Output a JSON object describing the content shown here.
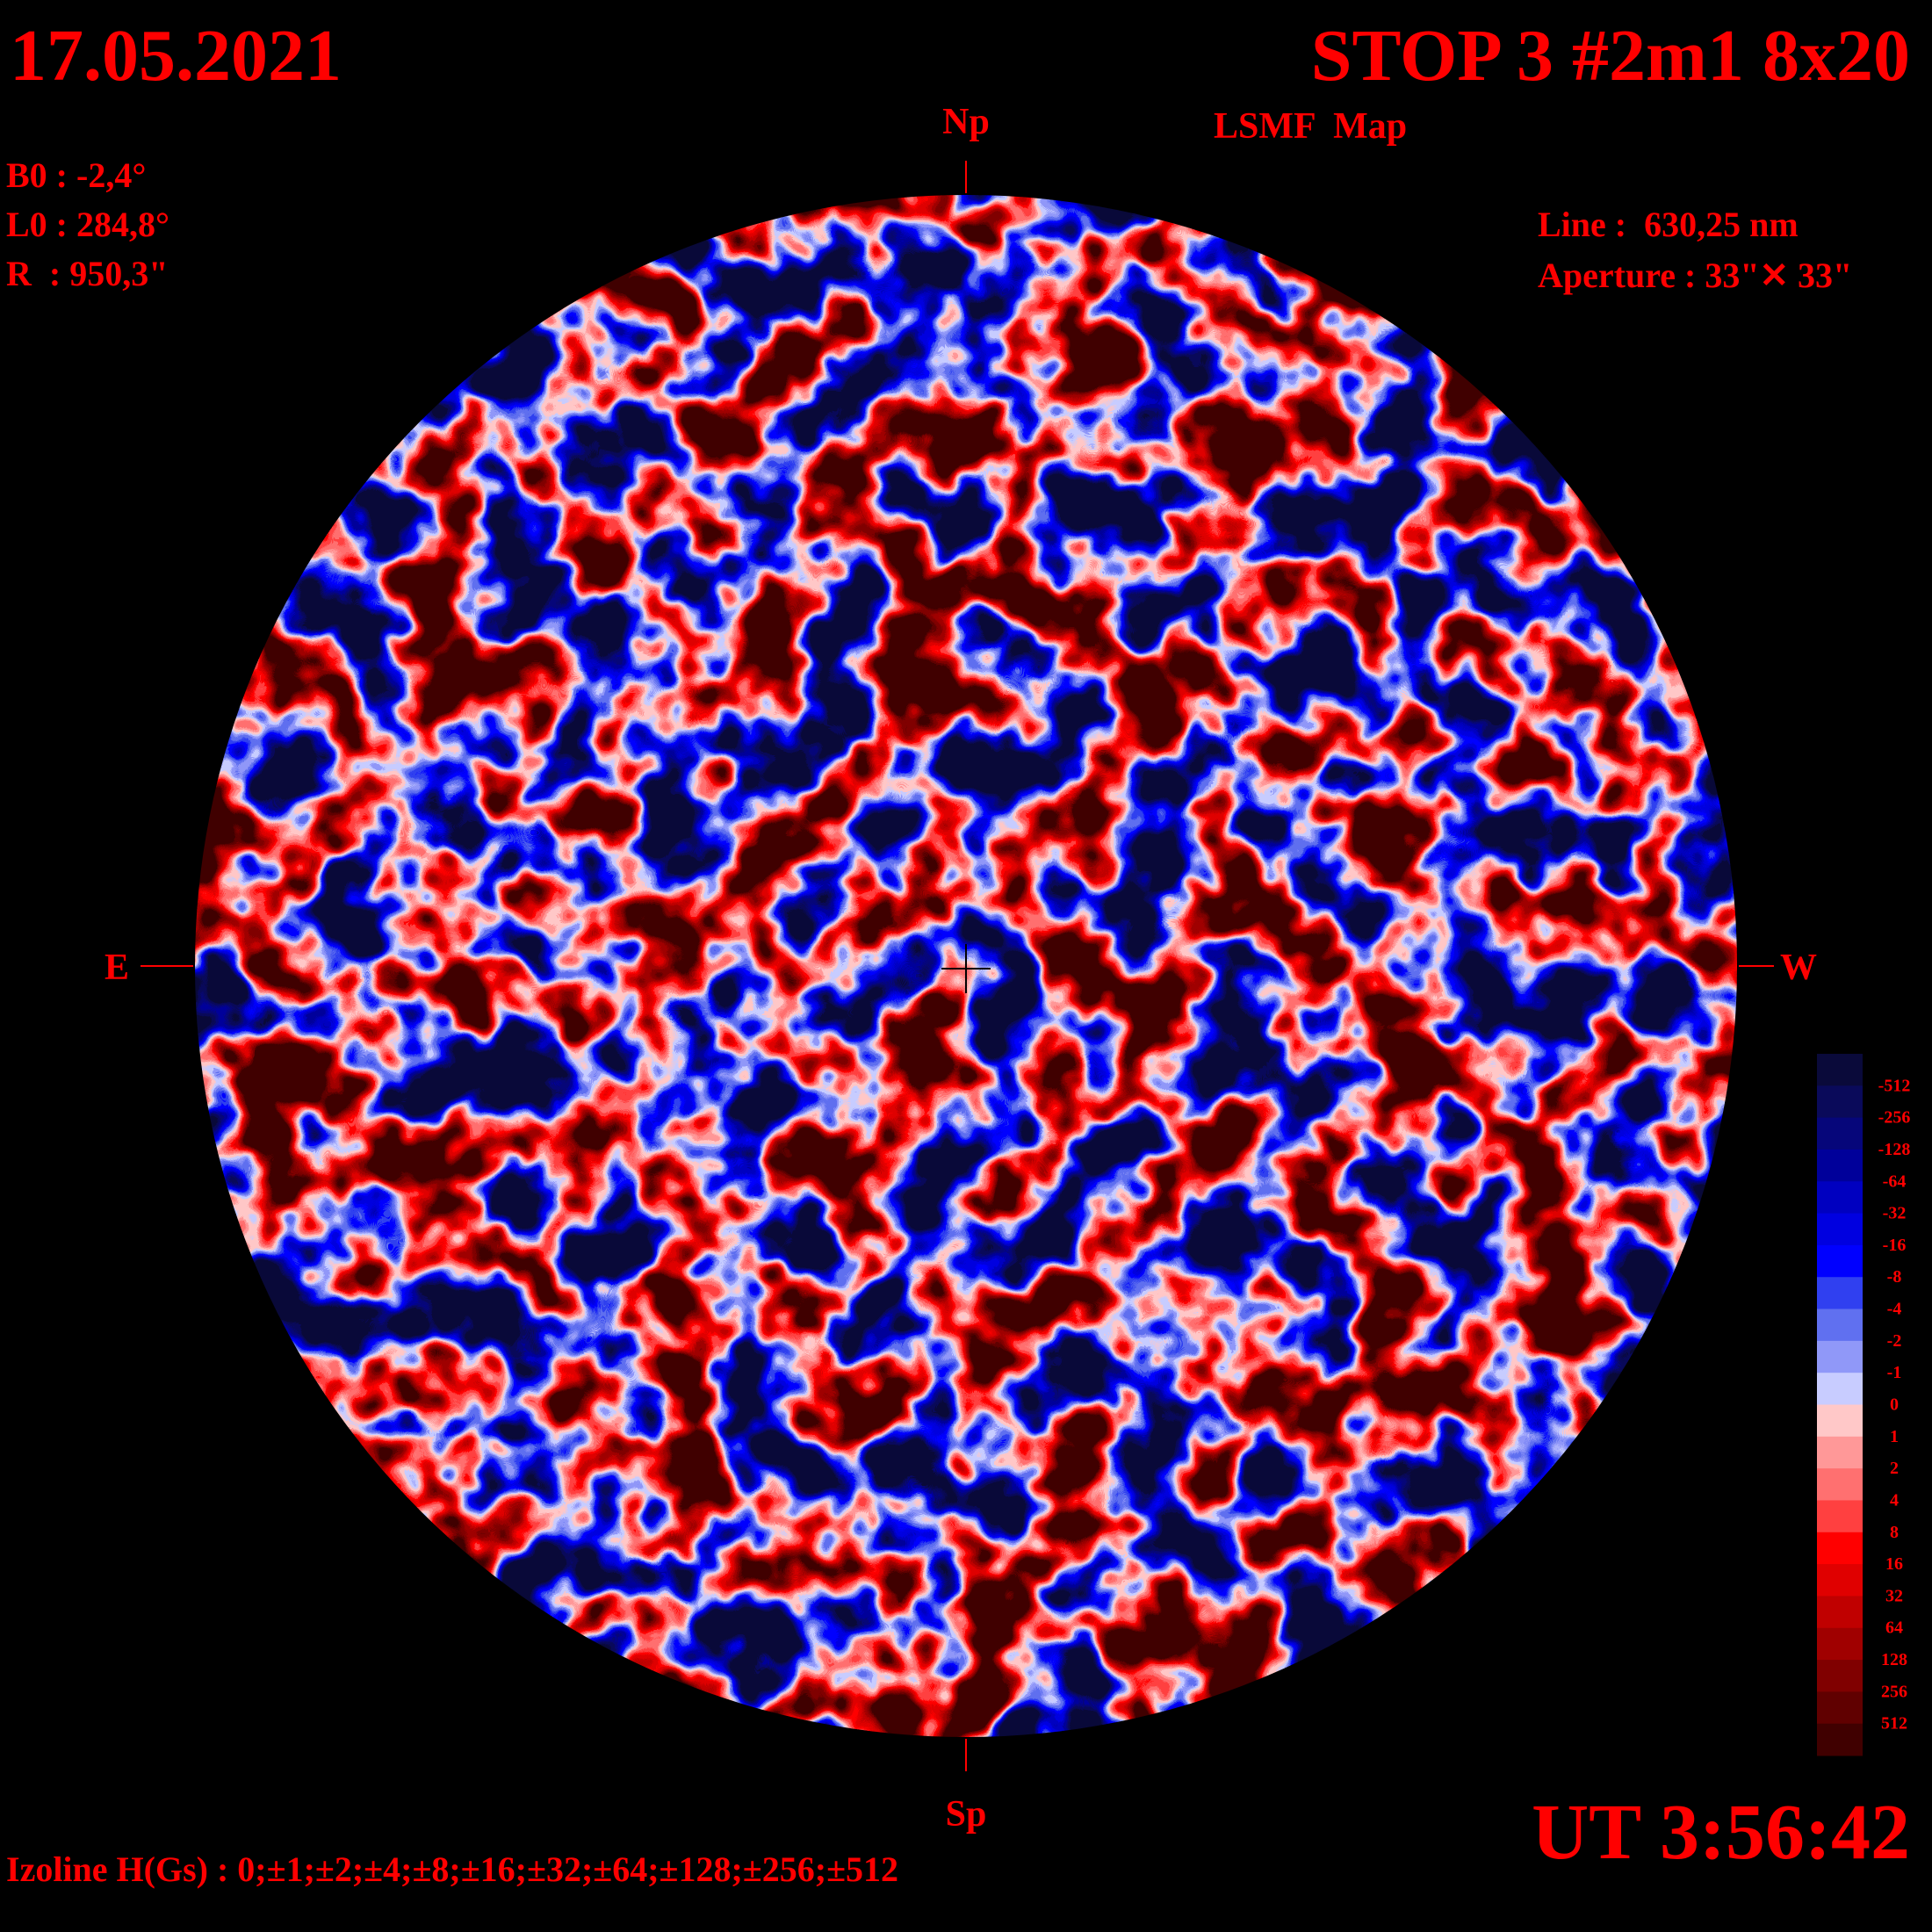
{
  "header": {
    "date": "17.05.2021",
    "title": "STOP 3 #2m1 8x20",
    "subtitle": "LSMF  Map",
    "time": "UT 3:56:42"
  },
  "parameters": [
    "B0 : -2,4°",
    "L0 : 284,8°",
    "R  : 950,3\""
  ],
  "instrument": [
    "Line :  630,25 nm",
    "Aperture : 33\"✕ 33\""
  ],
  "directions": {
    "north": "Np",
    "south": "Sp",
    "east": "E",
    "west": "W"
  },
  "colorbar": {
    "colors": [
      "#0a0a3a",
      "#0a0a5a",
      "#06067a",
      "#00009a",
      "#0000c0",
      "#0000e0",
      "#0000ff",
      "#3040f0",
      "#6070f0",
      "#9098f8",
      "#c8ccff",
      "#ffc8c8",
      "#ff9898",
      "#ff7070",
      "#ff4040",
      "#ff0000",
      "#e00000",
      "#c00000",
      "#a00000",
      "#800000",
      "#600000",
      "#400000"
    ],
    "labels": [
      "-512",
      "-256",
      "-128",
      "-64",
      "-32",
      "-16",
      "-8",
      "-4",
      "-2",
      "-1",
      "0",
      "1",
      "2",
      "4",
      "8",
      "16",
      "32",
      "64",
      "128",
      "256",
      "512"
    ]
  },
  "footer": "Izoline H(Gs) : 0;±1;±2;±4;±8;±16;±32;±64;±128;±256;±512"
}
